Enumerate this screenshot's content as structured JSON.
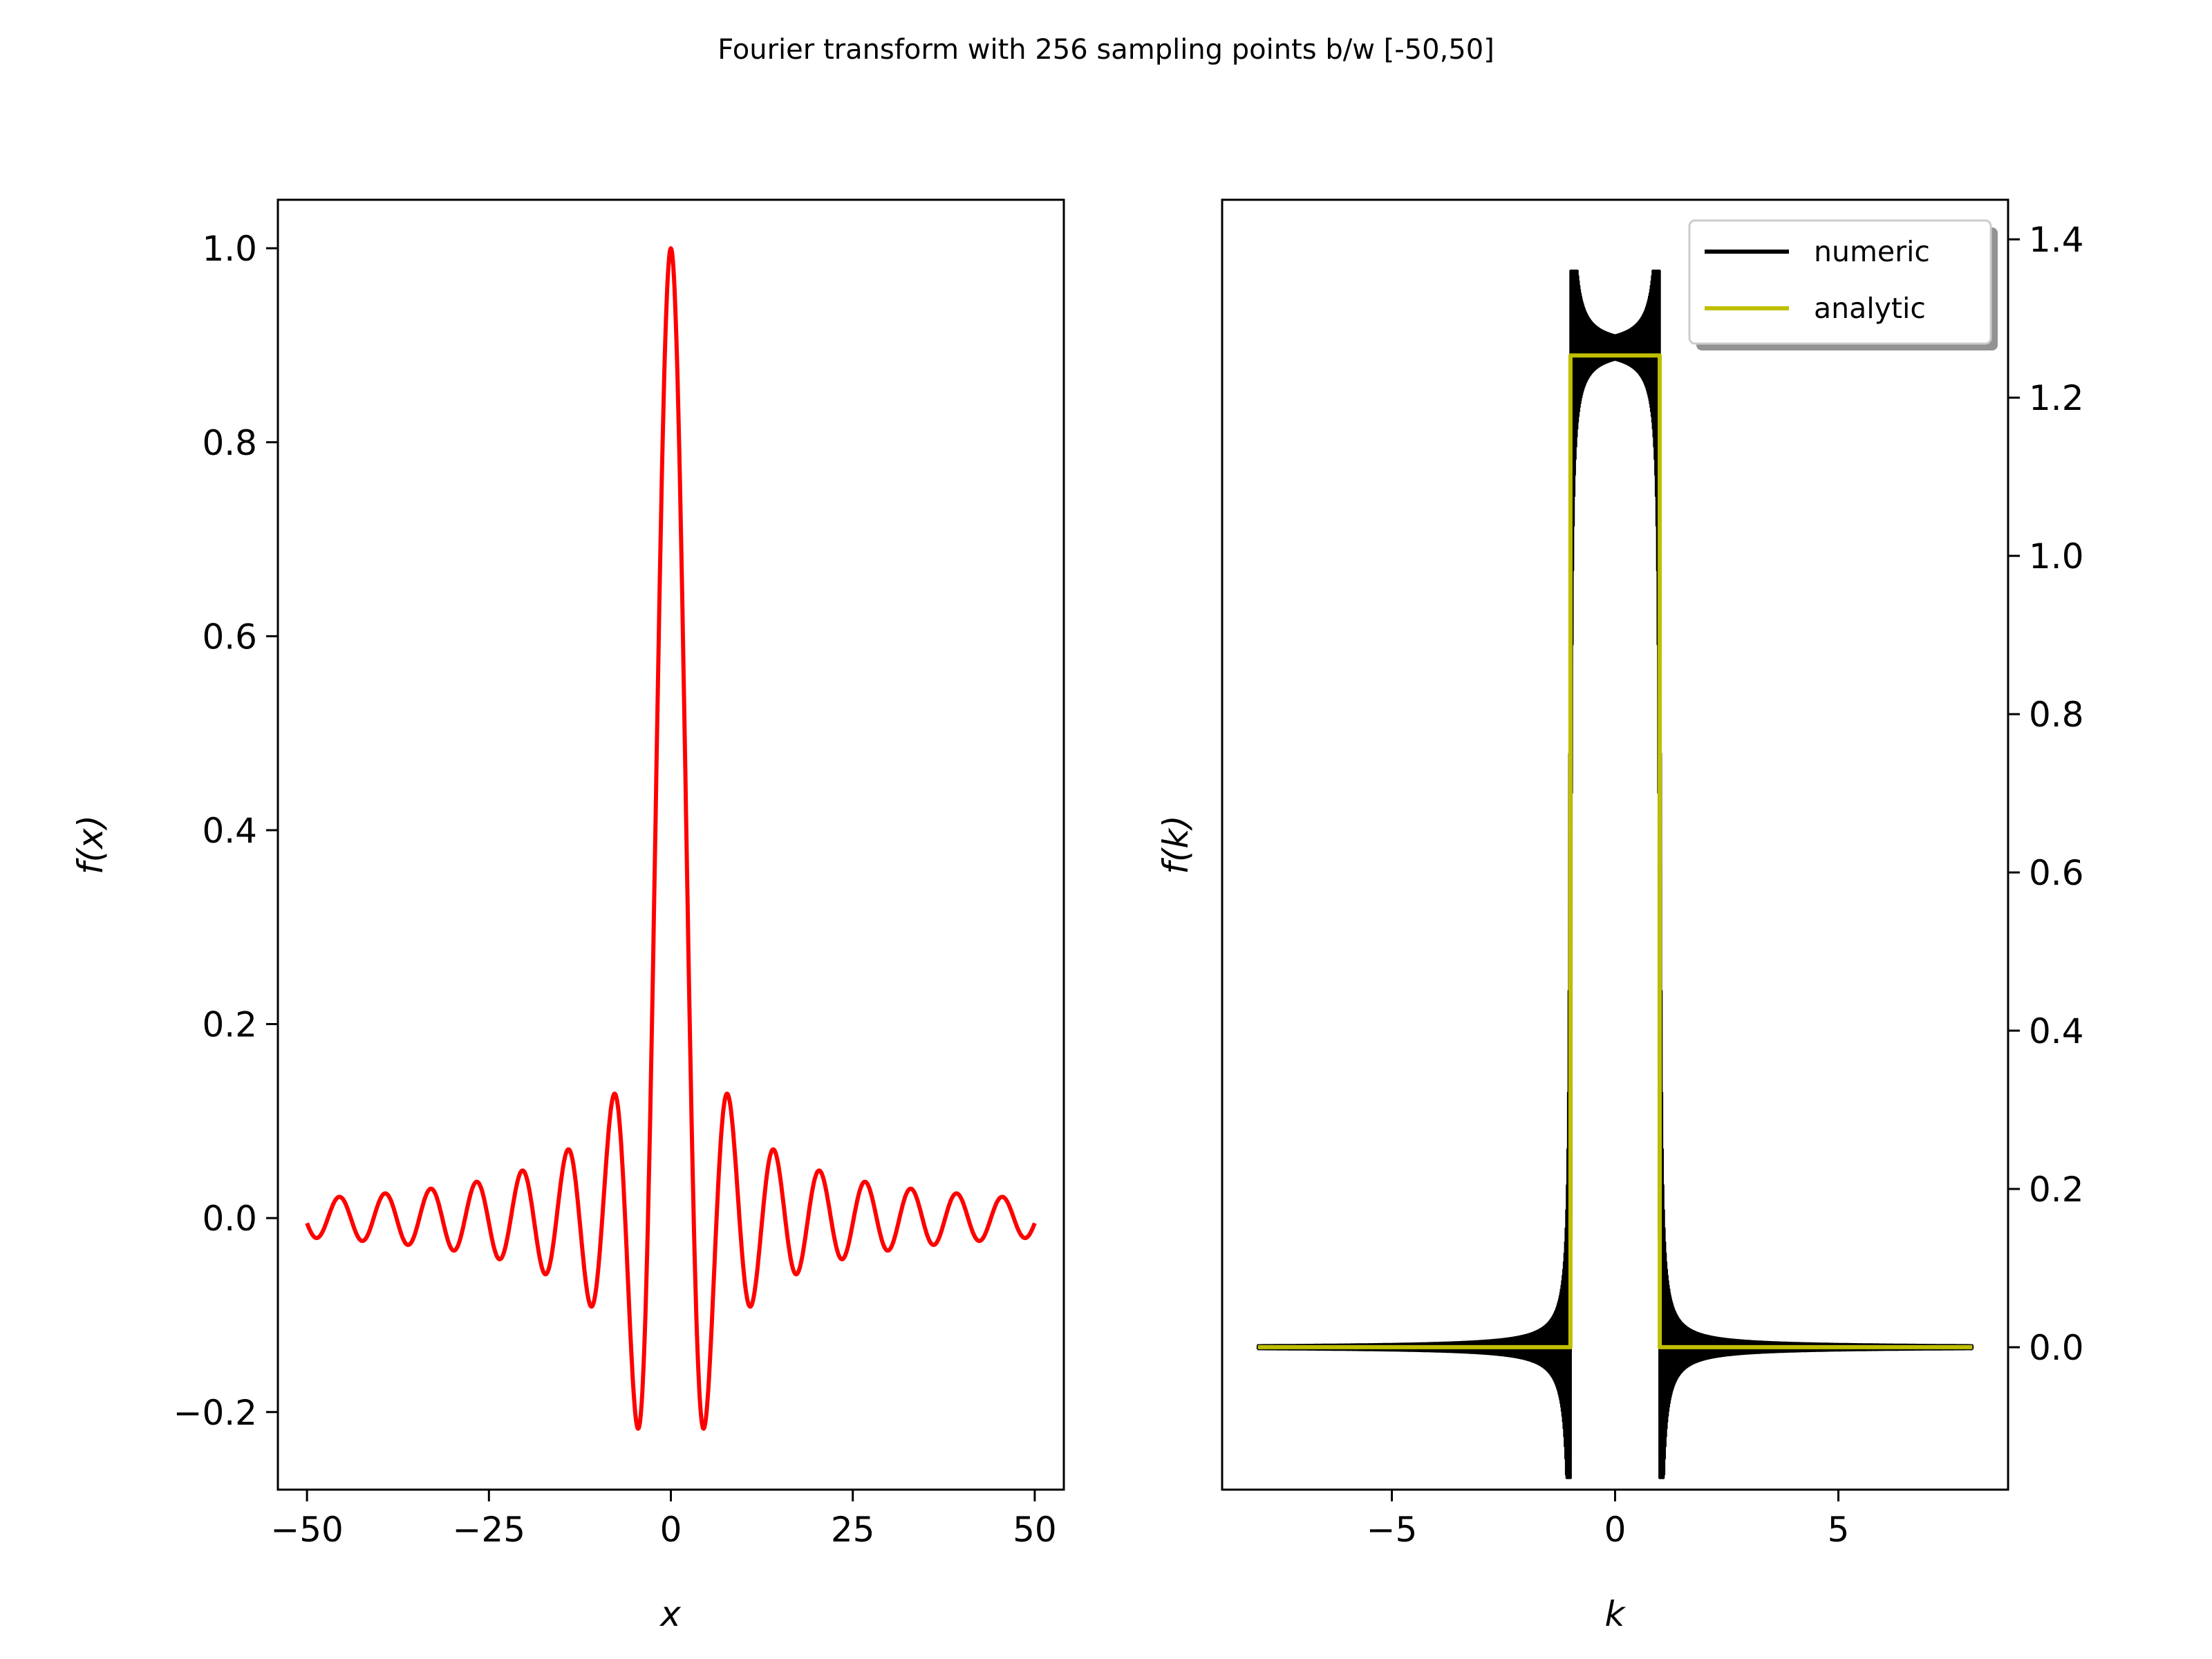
{
  "figure": {
    "title": "Fourier transform with 256 sampling points b/w [-50,50]"
  },
  "chart_data": [
    {
      "type": "line",
      "xlabel": "x",
      "ylabel": "f(x)",
      "xlim": [
        -54,
        54
      ],
      "ylim": [
        -0.28,
        1.05
      ],
      "xticks": [
        -50,
        -25,
        0,
        25,
        50
      ],
      "xtick_labels": [
        "−50",
        "−25",
        "0",
        "25",
        "50"
      ],
      "yticks": [
        -0.2,
        0.0,
        0.2,
        0.4,
        0.6,
        0.8,
        1.0
      ],
      "ytick_labels": [
        "−0.2",
        "0.0",
        "0.2",
        "0.4",
        "0.6",
        "0.8",
        "1.0"
      ],
      "yaxis_side": "left",
      "grid": false,
      "series": [
        {
          "color": "#ff0000",
          "function": "sinc",
          "x_range": [
            -50,
            50
          ],
          "x": [
            -50,
            -46.9,
            -40.6,
            -34.4,
            -28.1,
            -21.8,
            -15.6,
            -9.3,
            -4.5,
            0,
            4.5,
            9.3,
            15.6,
            21.8,
            28.1,
            34.4,
            40.6,
            46.9,
            50
          ],
          "y": [
            -0.003,
            -0.02,
            -0.025,
            -0.03,
            -0.036,
            -0.046,
            -0.064,
            -0.105,
            -0.217,
            1.0,
            -0.217,
            -0.105,
            -0.064,
            -0.046,
            -0.036,
            -0.03,
            -0.025,
            -0.02,
            -0.003
          ]
        }
      ]
    },
    {
      "type": "line",
      "xlabel": "k",
      "ylabel": "f(k)",
      "xlim": [
        -8.8,
        8.8
      ],
      "ylim": [
        -0.18,
        1.45
      ],
      "xticks": [
        -5,
        0,
        5
      ],
      "xtick_labels": [
        "−5",
        "0",
        "5"
      ],
      "yticks": [
        0.0,
        0.2,
        0.4,
        0.6,
        0.8,
        1.0,
        1.2,
        1.4
      ],
      "ytick_labels": [
        "0.0",
        "0.2",
        "0.4",
        "0.6",
        "0.8",
        "1.0",
        "1.2",
        "1.4"
      ],
      "yaxis_side": "right",
      "grid": false,
      "legend_position": "upper right",
      "series": [
        {
          "name": "numeric",
          "color": "#000000",
          "x": [
            -8,
            -1.1,
            -1.05,
            -1,
            -0.95,
            0,
            0.95,
            1,
            1.05,
            1.1,
            8
          ],
          "y": [
            0.0,
            -0.05,
            -0.11,
            1.37,
            1.28,
            1.25,
            1.28,
            1.37,
            -0.11,
            -0.05,
            0.0
          ]
        },
        {
          "name": "analytic",
          "color": "#bfbf00",
          "x": [
            -8,
            -1,
            -1,
            1,
            1,
            8
          ],
          "y": [
            0.0,
            0.0,
            1.2533,
            1.2533,
            0.0,
            0.0
          ]
        }
      ]
    }
  ]
}
